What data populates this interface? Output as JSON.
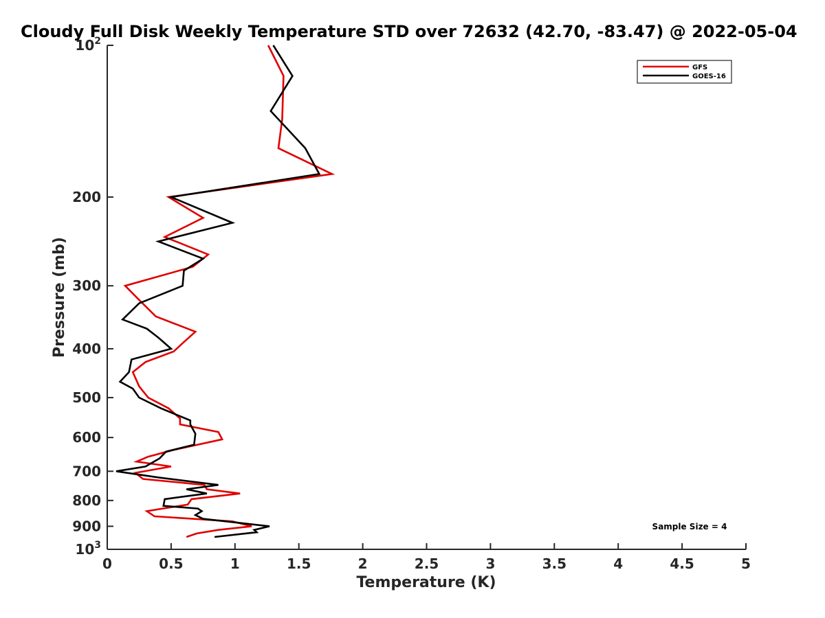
{
  "chart_data": {
    "type": "line",
    "title": "Cloudy Full Disk Weekly Temperature STD over 72632 (42.70, -83.47) @ 2022-05-04",
    "xlabel": "Temperature (K)",
    "ylabel": "Pressure (mb)",
    "xlim": [
      0,
      5
    ],
    "ylim": [
      100,
      1000
    ],
    "yscale": "log",
    "y_reversed": true,
    "grid": false,
    "legend_position": "top-right",
    "x_ticks": [
      0,
      0.5,
      1,
      1.5,
      2,
      2.5,
      3,
      3.5,
      4,
      4.5,
      5
    ],
    "x_tick_labels": [
      "0",
      "0.5",
      "1",
      "1.5",
      "2",
      "2.5",
      "3",
      "3.5",
      "4",
      "4.5",
      "5"
    ],
    "y_ticks": [
      100,
      200,
      300,
      400,
      500,
      600,
      700,
      800,
      900,
      1000
    ],
    "y_tick_labels": [
      {
        "base": "10",
        "exp": "2"
      },
      {
        "base": "200",
        "exp": ""
      },
      {
        "base": "300",
        "exp": ""
      },
      {
        "base": "400",
        "exp": ""
      },
      {
        "base": "500",
        "exp": ""
      },
      {
        "base": "600",
        "exp": ""
      },
      {
        "base": "700",
        "exp": ""
      },
      {
        "base": "800",
        "exp": ""
      },
      {
        "base": "900",
        "exp": ""
      },
      {
        "base": "10",
        "exp": "3"
      }
    ],
    "annotation": "Sample Size = 4",
    "series": [
      {
        "name": "GFS",
        "color": "#e00000",
        "points": [
          [
            1.26,
            100
          ],
          [
            1.38,
            115
          ],
          [
            1.37,
            140
          ],
          [
            1.34,
            160
          ],
          [
            1.76,
            180
          ],
          [
            0.48,
            200
          ],
          [
            0.75,
            220
          ],
          [
            0.45,
            240
          ],
          [
            0.79,
            260
          ],
          [
            0.67,
            275
          ],
          [
            0.14,
            300
          ],
          [
            0.25,
            320
          ],
          [
            0.38,
            345
          ],
          [
            0.69,
            370
          ],
          [
            0.59,
            390
          ],
          [
            0.52,
            405
          ],
          [
            0.3,
            425
          ],
          [
            0.2,
            445
          ],
          [
            0.25,
            475
          ],
          [
            0.32,
            500
          ],
          [
            0.48,
            525
          ],
          [
            0.57,
            550
          ],
          [
            0.57,
            565
          ],
          [
            0.87,
            585
          ],
          [
            0.9,
            605
          ],
          [
            0.52,
            635
          ],
          [
            0.32,
            655
          ],
          [
            0.23,
            670
          ],
          [
            0.5,
            685
          ],
          [
            0.22,
            705
          ],
          [
            0.28,
            725
          ],
          [
            0.76,
            745
          ],
          [
            0.78,
            760
          ],
          [
            1.04,
            775
          ],
          [
            0.66,
            795
          ],
          [
            0.63,
            815
          ],
          [
            0.31,
            840
          ],
          [
            0.37,
            860
          ],
          [
            0.98,
            880
          ],
          [
            1.13,
            900
          ],
          [
            0.87,
            915
          ],
          [
            0.7,
            930
          ],
          [
            0.62,
            945
          ]
        ]
      },
      {
        "name": "GOES-16",
        "color": "#000000",
        "points": [
          [
            1.3,
            100
          ],
          [
            1.45,
            115
          ],
          [
            1.28,
            135
          ],
          [
            1.55,
            160
          ],
          [
            1.66,
            180
          ],
          [
            0.5,
            200
          ],
          [
            0.98,
            225
          ],
          [
            0.4,
            245
          ],
          [
            0.75,
            265
          ],
          [
            0.6,
            280
          ],
          [
            0.59,
            300
          ],
          [
            0.25,
            325
          ],
          [
            0.12,
            350
          ],
          [
            0.31,
            365
          ],
          [
            0.4,
            380
          ],
          [
            0.5,
            400
          ],
          [
            0.19,
            420
          ],
          [
            0.17,
            445
          ],
          [
            0.1,
            465
          ],
          [
            0.2,
            480
          ],
          [
            0.25,
            500
          ],
          [
            0.42,
            525
          ],
          [
            0.65,
            555
          ],
          [
            0.65,
            565
          ],
          [
            0.69,
            590
          ],
          [
            0.68,
            620
          ],
          [
            0.46,
            640
          ],
          [
            0.41,
            660
          ],
          [
            0.3,
            685
          ],
          [
            0.07,
            700
          ],
          [
            0.4,
            720
          ],
          [
            0.87,
            745
          ],
          [
            0.62,
            760
          ],
          [
            0.78,
            775
          ],
          [
            0.45,
            795
          ],
          [
            0.44,
            820
          ],
          [
            0.71,
            830
          ],
          [
            0.74,
            840
          ],
          [
            0.69,
            855
          ],
          [
            0.75,
            870
          ],
          [
            1.27,
            900
          ],
          [
            1.15,
            915
          ],
          [
            1.17,
            925
          ],
          [
            0.84,
            945
          ]
        ]
      }
    ]
  }
}
